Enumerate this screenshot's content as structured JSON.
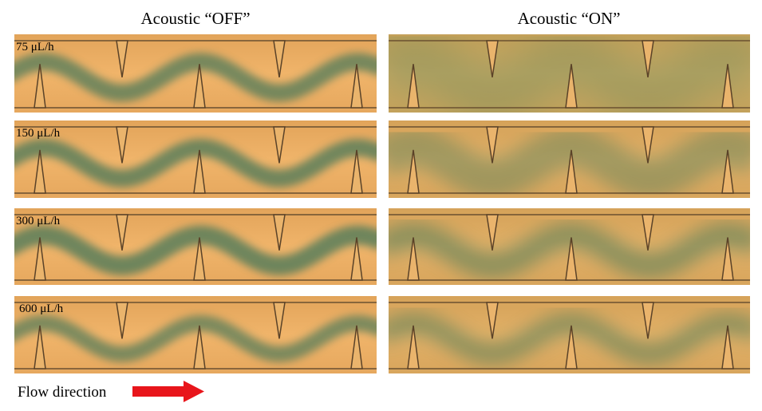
{
  "header": {
    "left": "Acoustic “OFF”",
    "right": "Acoustic “ON”"
  },
  "rows": [
    {
      "label": "75 μL/h"
    },
    {
      "label": "150 μL/h"
    },
    {
      "label": "300 μL/h"
    },
    {
      "label": "600 μL/h"
    }
  ],
  "footer": {
    "label": "Flow direction"
  }
}
